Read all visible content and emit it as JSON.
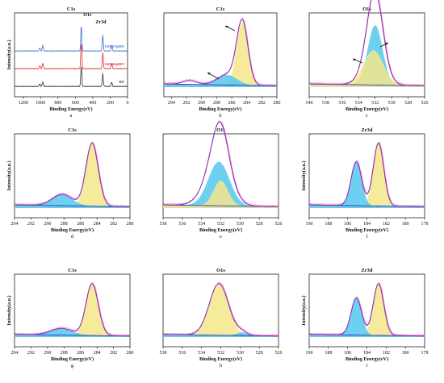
{
  "chart_data": [
    {
      "id": "a",
      "type": "line",
      "title": "C1s",
      "sublabel": "a",
      "xlabel": "Binding Energy(eV)",
      "ylabel": "Intensity(a.u.)",
      "xlim": [
        1300,
        0
      ],
      "xticks": [
        0,
        200,
        400,
        600,
        800,
        1000,
        1200
      ],
      "annotations": [
        "Zr3d",
        "O1s"
      ],
      "peaks": [
        {
          "x": 183,
          "h": 0.35
        },
        {
          "x": 285,
          "h": 1.0
        },
        {
          "x": 532,
          "h": 1.6
        },
        {
          "x": 975,
          "h": 0.35
        },
        {
          "x": 1010,
          "h": 0.2
        }
      ],
      "series": [
        {
          "name": "UiO-67@BY",
          "color": "#3a6fd0",
          "offset": 2.0
        },
        {
          "name": "UiO-66@BY",
          "color": "#e03030",
          "offset": 1.0
        },
        {
          "name": "BY",
          "color": "#333333",
          "offset": 0.0
        }
      ]
    },
    {
      "id": "b",
      "type": "line",
      "title": "C1s",
      "sublabel": "b",
      "xlabel": "Binding Energy(eV)",
      "ylabel": "",
      "xlim": [
        295,
        280
      ],
      "xticks": [
        294,
        292,
        290,
        288,
        286,
        284,
        282,
        280
      ],
      "components": [
        {
          "center": 284.6,
          "height": 1.0,
          "width": 0.75,
          "fill": "#f4e68a"
        },
        {
          "center": 286.6,
          "height": 0.16,
          "width": 1.3,
          "fill": "#55c8ee"
        }
      ],
      "extra": [
        {
          "center": 291.6,
          "height": 0.06,
          "width": 0.9
        }
      ],
      "arrows": true
    },
    {
      "id": "c",
      "type": "line",
      "title": "O1s",
      "sublabel": "c",
      "xlabel": "Binding Energy(eV)",
      "ylabel": "",
      "xlim": [
        540,
        526
      ],
      "xticks": [
        540,
        538,
        536,
        534,
        532,
        530,
        528,
        526
      ],
      "components": [
        {
          "center": 532.2,
          "height": 0.55,
          "width": 1.2,
          "fill": "#f4e68a"
        },
        {
          "center": 532.0,
          "height": 0.95,
          "width": 0.9,
          "fill": "#55c8ee"
        }
      ],
      "extra": [],
      "arrows": true
    },
    {
      "id": "d",
      "type": "line",
      "title": "C1s",
      "sublabel": "d",
      "xlabel": "Binding Energy(eV)",
      "ylabel": "Intensity(a.u.)",
      "xlim": [
        294,
        280
      ],
      "xticks": [
        294,
        292,
        290,
        288,
        286,
        284,
        282,
        280
      ],
      "components": [
        {
          "center": 284.6,
          "height": 1.0,
          "width": 0.75,
          "fill": "#f4e68a"
        },
        {
          "center": 288.2,
          "height": 0.18,
          "width": 1.2,
          "fill": "#55c8ee"
        }
      ],
      "extra": [],
      "arrows": false
    },
    {
      "id": "e",
      "type": "line",
      "title": "O1s",
      "sublabel": "e",
      "xlabel": "Binding Energy(eV)",
      "ylabel": "",
      "xlim": [
        538,
        526
      ],
      "xticks": [
        538,
        536,
        534,
        532,
        530,
        528,
        526
      ],
      "components": [
        {
          "center": 532.2,
          "height": 0.7,
          "width": 1.1,
          "fill": "#55c8ee"
        },
        {
          "center": 532.0,
          "height": 0.4,
          "width": 0.75,
          "fill": "#f4e68a"
        }
      ],
      "extra": [
        {
          "center": 532.5,
          "height": 0.25,
          "width": 1.4
        }
      ],
      "arrows": false
    },
    {
      "id": "f",
      "type": "line",
      "title": "Zr3d",
      "sublabel": "f",
      "xlabel": "Binding Energy(eV)",
      "ylabel": "Intensity(a.u.)",
      "xlim": [
        190,
        178
      ],
      "xticks": [
        190,
        188,
        186,
        184,
        182,
        180,
        178
      ],
      "components": [
        {
          "center": 182.8,
          "height": 1.0,
          "width": 0.55,
          "fill": "#f4e68a"
        },
        {
          "center": 185.1,
          "height": 0.7,
          "width": 0.55,
          "fill": "#55c8ee"
        }
      ],
      "extra": [],
      "arrows": false
    },
    {
      "id": "g",
      "type": "line",
      "title": "C1s",
      "sublabel": "g",
      "xlabel": "Binding Energy(eV)",
      "ylabel": "Intensity(a.u.)",
      "xlim": [
        294,
        280
      ],
      "xticks": [
        294,
        292,
        290,
        288,
        286,
        284,
        282,
        280
      ],
      "components": [
        {
          "center": 284.6,
          "height": 1.0,
          "width": 0.75,
          "fill": "#f4e68a"
        },
        {
          "center": 288.3,
          "height": 0.13,
          "width": 1.3,
          "fill": "#55c8ee"
        }
      ],
      "extra": [],
      "arrows": false
    },
    {
      "id": "h",
      "type": "line",
      "title": "O1s",
      "sublabel": "h",
      "xlabel": "Binding Energy(eV)",
      "ylabel": "",
      "xlim": [
        538,
        526
      ],
      "xticks": [
        538,
        536,
        534,
        532,
        530,
        528,
        526
      ],
      "components": [
        {
          "center": 532.2,
          "height": 1.0,
          "width": 1.0,
          "fill": "#f4e68a"
        },
        {
          "center": 529.8,
          "height": 0.06,
          "width": 0.5,
          "fill": "#55c8ee"
        }
      ],
      "extra": [],
      "arrows": false
    },
    {
      "id": "i",
      "type": "line",
      "title": "Zr3d",
      "sublabel": "i",
      "xlabel": "Binding Energy(eV)",
      "ylabel": "Intensity(a.u.)",
      "xlim": [
        190,
        178
      ],
      "xticks": [
        190,
        188,
        186,
        184,
        182,
        180,
        178
      ],
      "components": [
        {
          "center": 182.8,
          "height": 1.0,
          "width": 0.55,
          "fill": "#f4e68a"
        },
        {
          "center": 185.1,
          "height": 0.72,
          "width": 0.55,
          "fill": "#55c8ee"
        }
      ],
      "extra": [],
      "arrows": false
    }
  ],
  "colors": {
    "envelope": "#7a2fb0",
    "fit_line": "#ff66cc",
    "background_line": "#2a3cc0",
    "gold": "#f4e68a",
    "cyan": "#55c8ee"
  }
}
